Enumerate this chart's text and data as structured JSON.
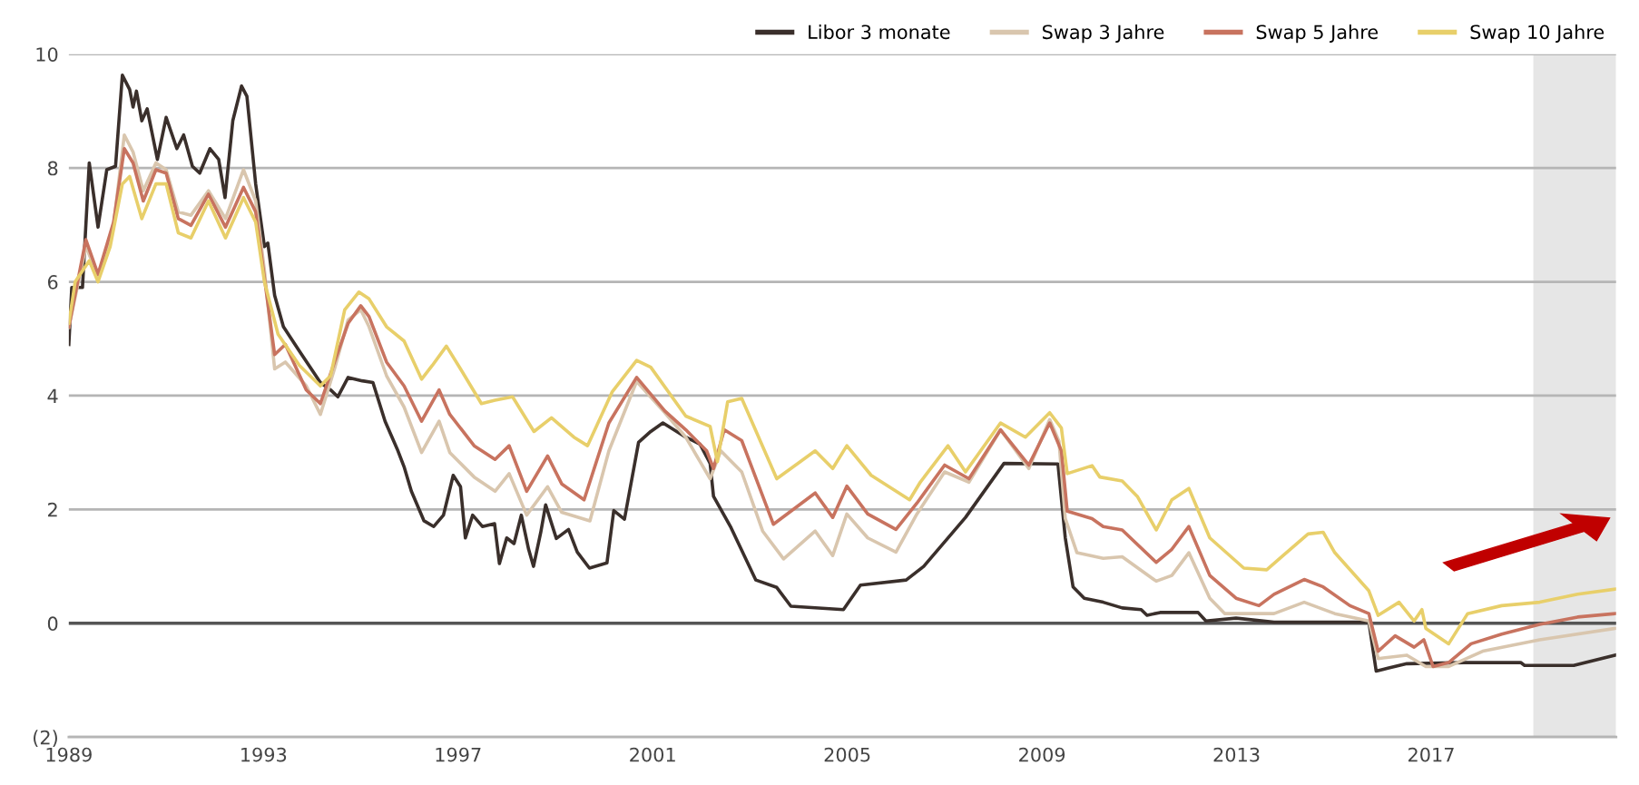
{
  "chart_data": {
    "type": "line",
    "xlim": [
      1989,
      2020.8
    ],
    "xticks": [
      1989,
      1993,
      1997,
      2001,
      2005,
      2009,
      2013,
      2017
    ],
    "ylim": [
      -2,
      10
    ],
    "yticks": [
      {
        "value": -2,
        "label": "(2)"
      },
      0,
      2,
      4,
      6,
      8,
      10
    ],
    "grid": "y",
    "legend": "top right",
    "line_style": "solid",
    "marker": "none",
    "ref_lines": [
      {
        "axis": "y",
        "value": 0,
        "color": "#555555"
      }
    ],
    "bands": [
      {
        "axis": "x",
        "from": 2019.1,
        "to": 2020.8,
        "color": "#e6e6e6"
      }
    ],
    "series": [
      {
        "name": "Libor 3 monate",
        "color": "#3a2f2b",
        "x": [
          1989.0,
          1989.06,
          1989.28,
          1989.42,
          1989.6,
          1989.78,
          1989.96,
          1990.1,
          1990.25,
          1990.32,
          1990.39,
          1990.5,
          1990.61,
          1990.82,
          1991.0,
          1991.22,
          1991.36,
          1991.54,
          1991.69,
          1991.9,
          1992.08,
          1992.21,
          1992.37,
          1992.55,
          1992.66,
          1992.84,
          1993.02,
          1993.09,
          1993.23,
          1993.41,
          1993.74,
          1994.17,
          1994.38,
          1994.53,
          1994.74,
          1995.03,
          1995.25,
          1995.5,
          1995.75,
          1995.89,
          1996.04,
          1996.3,
          1996.5,
          1996.7,
          1996.9,
          1997.05,
          1997.15,
          1997.3,
          1997.5,
          1997.75,
          1997.85,
          1998.0,
          1998.15,
          1998.3,
          1998.45,
          1998.55,
          1998.7,
          1998.8,
          1999.02,
          1999.27,
          1999.45,
          1999.7,
          2000.06,
          2000.2,
          2000.42,
          2000.71,
          2000.96,
          2001.21,
          2001.68,
          2001.97,
          2002.18,
          2002.25,
          2002.61,
          2003.12,
          2003.55,
          2003.84,
          2004.92,
          2005.27,
          2006.21,
          2006.57,
          2007.43,
          2008.22,
          2009.33,
          2009.48,
          2009.64,
          2009.87,
          2010.26,
          2010.65,
          2011.04,
          2011.16,
          2011.43,
          2012.21,
          2012.37,
          2012.99,
          2013.77,
          2015.72,
          2015.87,
          2016.11,
          2016.5,
          2017.67,
          2018.84,
          2018.92,
          2019.93,
          2020.78
        ],
        "values": [
          4.9,
          5.9,
          5.9,
          8.09,
          6.96,
          7.97,
          8.03,
          9.63,
          9.38,
          9.07,
          9.35,
          8.83,
          9.04,
          8.15,
          8.89,
          8.34,
          8.58,
          8.03,
          7.91,
          8.34,
          8.15,
          7.48,
          8.83,
          9.44,
          9.26,
          7.72,
          6.62,
          6.68,
          5.76,
          5.21,
          4.78,
          4.23,
          4.1,
          3.98,
          4.32,
          4.26,
          4.23,
          3.55,
          3.06,
          2.75,
          2.32,
          1.8,
          1.7,
          1.9,
          2.6,
          2.4,
          1.5,
          1.9,
          1.7,
          1.75,
          1.05,
          1.5,
          1.4,
          1.9,
          1.3,
          1.0,
          1.6,
          2.08,
          1.49,
          1.65,
          1.25,
          0.97,
          1.06,
          1.98,
          1.83,
          3.18,
          3.37,
          3.52,
          3.27,
          3.15,
          2.81,
          2.23,
          1.68,
          0.76,
          0.63,
          0.3,
          0.24,
          0.67,
          0.76,
          1.0,
          1.86,
          2.81,
          2.8,
          1.5,
          0.64,
          0.44,
          0.37,
          0.27,
          0.24,
          0.14,
          0.19,
          0.19,
          0.04,
          0.09,
          0.02,
          0.02,
          -0.84,
          -0.79,
          -0.71,
          -0.69,
          -0.69,
          -0.74,
          -0.74,
          -0.56
        ]
      },
      {
        "name": "Swap 3 Jahre",
        "color": "#d9c6ae",
        "x": [
          1989.0,
          1989.35,
          1989.6,
          1989.92,
          1990.14,
          1990.32,
          1990.53,
          1990.79,
          1991.0,
          1991.25,
          1991.51,
          1991.87,
          1992.22,
          1992.59,
          1992.84,
          1993.02,
          1993.23,
          1993.45,
          1993.88,
          1994.17,
          1994.46,
          1994.74,
          1995.0,
          1995.17,
          1995.53,
          1995.89,
          1996.25,
          1996.61,
          1996.83,
          1997.33,
          1997.76,
          1998.05,
          1998.41,
          1998.84,
          1999.13,
          1999.71,
          2000.1,
          2000.67,
          2001.25,
          2001.68,
          2002.18,
          2002.4,
          2002.83,
          2003.26,
          2003.69,
          2004.34,
          2004.7,
          2004.99,
          2005.42,
          2006.0,
          2006.43,
          2007.0,
          2007.5,
          2008.15,
          2008.73,
          2009.16,
          2009.35,
          2009.48,
          2009.72,
          2010.26,
          2010.65,
          2011.35,
          2011.67,
          2012.02,
          2012.45,
          2012.76,
          2013.77,
          2014.39,
          2015.02,
          2015.72,
          2015.91,
          2016.5,
          2016.89,
          2017.36,
          2018.06,
          2019.23,
          2020.78
        ],
        "values": [
          5.2,
          6.62,
          6.1,
          7.0,
          8.58,
          8.28,
          7.6,
          8.09,
          7.97,
          7.23,
          7.17,
          7.6,
          7.11,
          7.97,
          7.42,
          6.2,
          4.47,
          4.59,
          4.17,
          3.67,
          4.47,
          5.33,
          5.51,
          5.21,
          4.35,
          3.8,
          3.0,
          3.55,
          3.0,
          2.57,
          2.32,
          2.63,
          1.9,
          2.4,
          1.95,
          1.8,
          3.03,
          4.25,
          3.7,
          3.27,
          2.54,
          3.03,
          2.66,
          1.62,
          1.13,
          1.62,
          1.19,
          1.92,
          1.5,
          1.25,
          1.92,
          2.66,
          2.48,
          3.4,
          2.72,
          3.58,
          3.2,
          1.84,
          1.24,
          1.14,
          1.17,
          0.74,
          0.84,
          1.24,
          0.44,
          0.17,
          0.17,
          0.37,
          0.17,
          0.04,
          -0.62,
          -0.56,
          -0.76,
          -0.76,
          -0.49,
          -0.29,
          -0.09
        ]
      },
      {
        "name": "Swap 5 Jahre",
        "color": "#c8735f",
        "x": [
          1989.0,
          1989.35,
          1989.6,
          1989.92,
          1990.14,
          1990.32,
          1990.53,
          1990.79,
          1991.0,
          1991.25,
          1991.51,
          1991.87,
          1992.22,
          1992.59,
          1992.84,
          1993.02,
          1993.23,
          1993.45,
          1993.88,
          1994.17,
          1994.46,
          1994.74,
          1995.0,
          1995.17,
          1995.53,
          1995.89,
          1996.25,
          1996.61,
          1996.83,
          1997.33,
          1997.76,
          1998.05,
          1998.41,
          1998.84,
          1999.13,
          1999.59,
          2000.1,
          2000.67,
          2001.25,
          2001.68,
          2002.11,
          2002.25,
          2002.47,
          2002.83,
          2003.48,
          2004.34,
          2004.7,
          2004.99,
          2005.42,
          2006.0,
          2006.43,
          2007.0,
          2007.5,
          2008.15,
          2008.73,
          2009.16,
          2009.4,
          2009.52,
          2010.03,
          2010.26,
          2010.65,
          2011.35,
          2011.67,
          2012.02,
          2012.45,
          2012.99,
          2013.46,
          2013.77,
          2014.39,
          2014.78,
          2015.33,
          2015.72,
          2015.91,
          2016.26,
          2016.65,
          2016.85,
          2017.04,
          2017.36,
          2017.82,
          2018.45,
          2019.23,
          2020.01,
          2020.78
        ],
        "values": [
          5.21,
          6.74,
          6.13,
          7.05,
          8.34,
          8.09,
          7.42,
          7.97,
          7.91,
          7.11,
          6.99,
          7.54,
          6.96,
          7.66,
          7.23,
          6.07,
          4.72,
          4.9,
          4.1,
          3.86,
          4.59,
          5.27,
          5.58,
          5.39,
          4.59,
          4.17,
          3.55,
          4.1,
          3.67,
          3.12,
          2.88,
          3.12,
          2.32,
          2.94,
          2.45,
          2.17,
          3.52,
          4.32,
          3.73,
          3.4,
          3.03,
          2.72,
          3.4,
          3.21,
          1.74,
          2.29,
          1.86,
          2.41,
          1.92,
          1.65,
          2.11,
          2.78,
          2.54,
          3.4,
          2.78,
          3.52,
          3.03,
          1.97,
          1.84,
          1.7,
          1.64,
          1.07,
          1.3,
          1.7,
          0.84,
          0.44,
          0.31,
          0.51,
          0.77,
          0.64,
          0.31,
          0.17,
          -0.49,
          -0.22,
          -0.42,
          -0.29,
          -0.76,
          -0.69,
          -0.36,
          -0.19,
          -0.02,
          0.11,
          0.17
        ]
      },
      {
        "name": "Swap 10 Jahre",
        "color": "#e8cf6a",
        "x": [
          1989.0,
          1989.13,
          1989.42,
          1989.6,
          1989.85,
          1990.1,
          1990.25,
          1990.5,
          1990.79,
          1991.0,
          1991.25,
          1991.51,
          1991.87,
          1992.22,
          1992.59,
          1992.84,
          1993.02,
          1993.3,
          1993.74,
          1994.17,
          1994.38,
          1994.67,
          1994.96,
          1995.17,
          1995.53,
          1995.89,
          1996.25,
          1996.47,
          1996.76,
          1997.05,
          1997.48,
          1997.76,
          1998.12,
          1998.56,
          1998.92,
          1999.38,
          1999.66,
          2000.17,
          2000.67,
          2000.96,
          2001.68,
          2002.18,
          2002.33,
          2002.54,
          2002.83,
          2003.55,
          2004.34,
          2004.7,
          2004.99,
          2005.49,
          2006.28,
          2006.5,
          2007.07,
          2007.43,
          2008.15,
          2008.66,
          2009.16,
          2009.4,
          2009.52,
          2010.03,
          2010.19,
          2010.65,
          2010.96,
          2011.35,
          2011.67,
          2012.02,
          2012.45,
          2013.15,
          2013.62,
          2013.93,
          2014.47,
          2014.78,
          2015.02,
          2015.72,
          2015.91,
          2016.34,
          2016.65,
          2016.81,
          2016.89,
          2017.36,
          2017.75,
          2018.45,
          2019.23,
          2020.01,
          2020.78
        ],
        "values": [
          5.27,
          6.0,
          6.37,
          6.0,
          6.62,
          7.72,
          7.85,
          7.11,
          7.72,
          7.72,
          6.86,
          6.77,
          7.42,
          6.77,
          7.48,
          7.05,
          6.0,
          5.08,
          4.53,
          4.17,
          4.35,
          5.51,
          5.82,
          5.7,
          5.21,
          4.96,
          4.29,
          4.53,
          4.87,
          4.47,
          3.86,
          3.92,
          3.98,
          3.37,
          3.61,
          3.27,
          3.12,
          4.07,
          4.62,
          4.5,
          3.64,
          3.46,
          2.84,
          3.89,
          3.95,
          2.54,
          3.03,
          2.72,
          3.12,
          2.6,
          2.17,
          2.48,
          3.12,
          2.66,
          3.52,
          3.27,
          3.7,
          3.43,
          2.63,
          2.77,
          2.57,
          2.5,
          2.23,
          1.64,
          2.17,
          2.37,
          1.5,
          0.97,
          0.94,
          1.17,
          1.57,
          1.6,
          1.24,
          0.57,
          0.14,
          0.37,
          0.04,
          0.24,
          -0.09,
          -0.36,
          0.17,
          0.31,
          0.37,
          0.51,
          0.6
        ]
      }
    ]
  }
}
